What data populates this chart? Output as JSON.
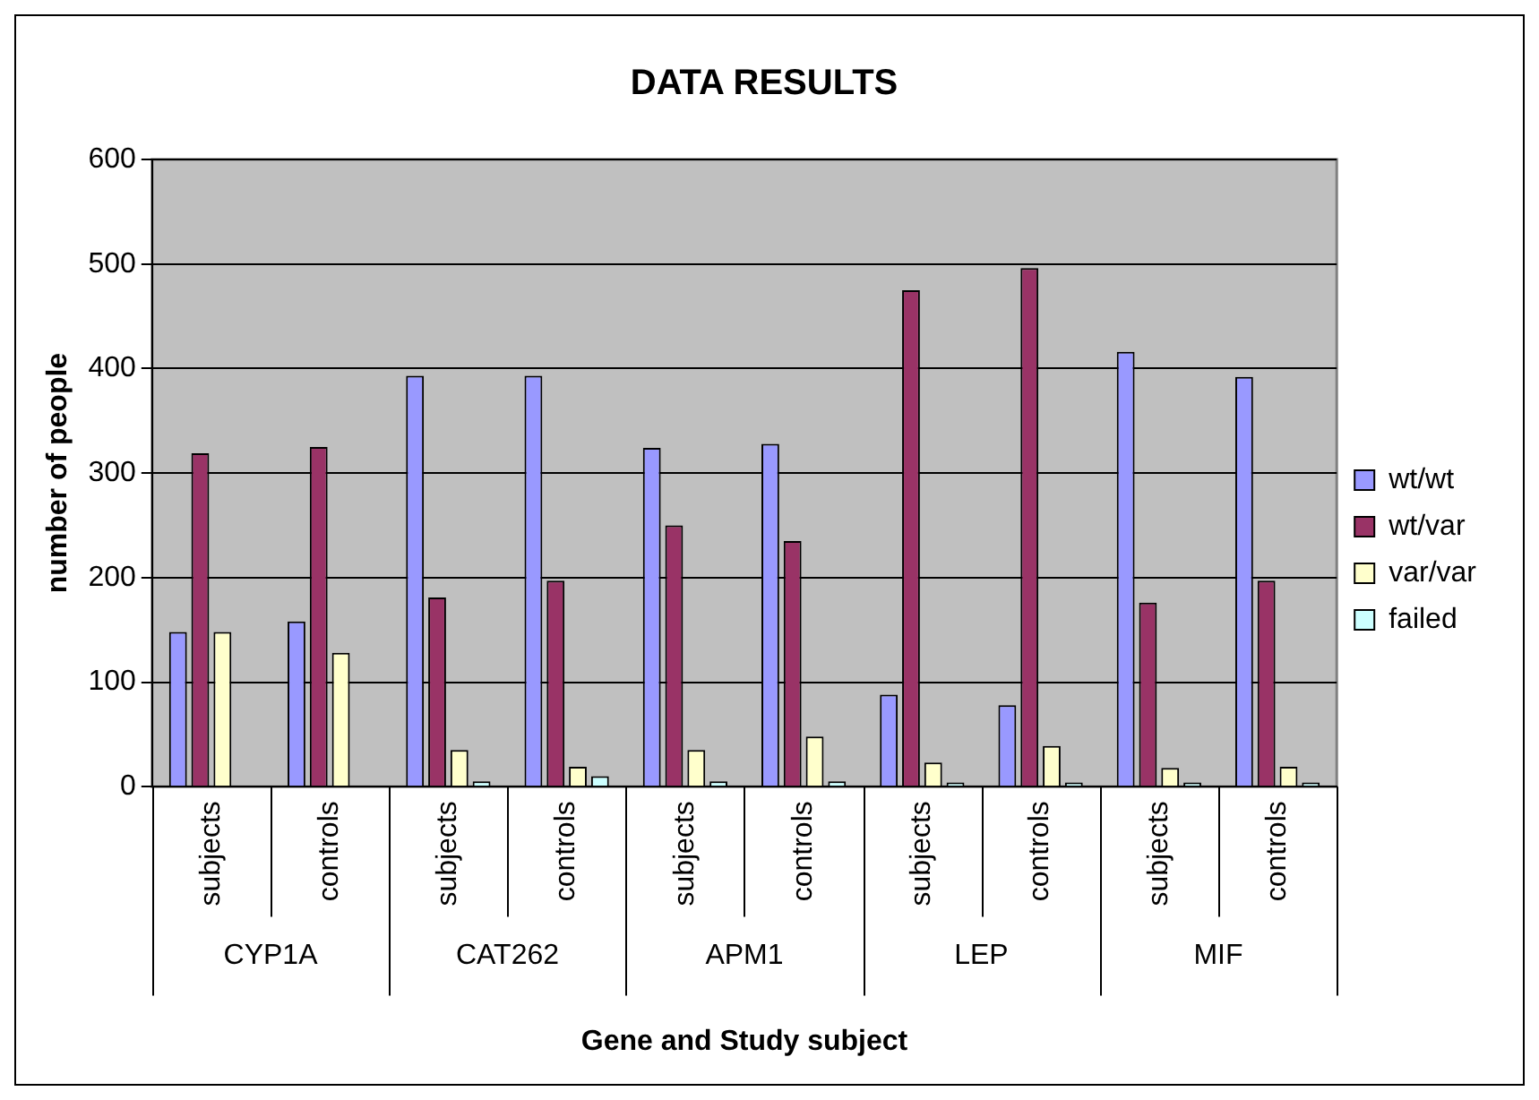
{
  "chart_data": {
    "type": "bar",
    "title": "DATA RESULTS",
    "xlabel": "Gene and Study subject",
    "ylabel": "number of people",
    "categories": [
      "subjects",
      "controls",
      "subjects",
      "controls",
      "subjects",
      "controls",
      "subjects",
      "controls",
      "subjects",
      "controls"
    ],
    "annotations": [
      "CYP1A",
      "CAT262",
      "APM1",
      "LEP",
      "MIF"
    ],
    "series": [
      {
        "name": "wt/wt",
        "color": "#9999ff",
        "values": [
          148,
          158,
          393,
          393,
          324,
          328,
          88,
          78,
          416,
          392
        ]
      },
      {
        "name": "wt/var",
        "color": "#993366",
        "values": [
          319,
          325,
          181,
          197,
          250,
          235,
          475,
          496,
          176,
          197
        ]
      },
      {
        "name": "var/var",
        "color": "#ffffcc",
        "values": [
          148,
          128,
          35,
          19,
          35,
          48,
          23,
          39,
          18,
          19
        ]
      },
      {
        "name": "failed",
        "color": "#ccffff",
        "values": [
          0,
          0,
          5,
          10,
          5,
          5,
          4,
          4,
          4,
          4
        ]
      }
    ],
    "ylim": [
      0,
      600
    ],
    "yticks": [
      0,
      100,
      200,
      300,
      400,
      500,
      600
    ],
    "grid": "y",
    "legend": "right"
  }
}
